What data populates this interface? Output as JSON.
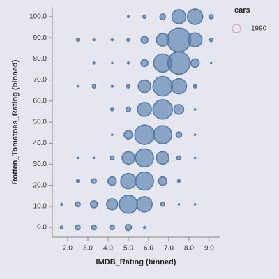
{
  "chart_data": {
    "type": "scatter",
    "x_label": "IMDB_Rating (binned)",
    "y_label": "Rotten_Tomatoes_Rating (binned)",
    "legend_title": "cars",
    "xlim": [
      1.24,
      9.52
    ],
    "ylim": [
      -4.6,
      104.6
    ],
    "xticks": [
      {
        "value": 2,
        "label": "2.0"
      },
      {
        "value": 3,
        "label": "3.0"
      },
      {
        "value": 4,
        "label": "4.0"
      },
      {
        "value": 5,
        "label": "5.0"
      },
      {
        "value": 6,
        "label": "6.0"
      },
      {
        "value": 7,
        "label": "7.0"
      },
      {
        "value": 8,
        "label": "8.0"
      },
      {
        "value": 9,
        "label": "9.0"
      }
    ],
    "yticks": [
      {
        "value": 0,
        "label": "0.0"
      },
      {
        "value": 10,
        "label": "10.0"
      },
      {
        "value": 20,
        "label": "20.0"
      },
      {
        "value": 30,
        "label": "30.0"
      },
      {
        "value": 40,
        "label": "40.0"
      },
      {
        "value": 50,
        "label": "50.0"
      },
      {
        "value": 60,
        "label": "60.0"
      },
      {
        "value": 70,
        "label": "70.0"
      },
      {
        "value": 80,
        "label": "80.0"
      },
      {
        "value": 90,
        "label": "90.0"
      },
      {
        "value": 100,
        "label": "100.0"
      }
    ],
    "series": [
      {
        "name": "1990",
        "color": "#4c78a8",
        "legend_color": "#d98ad4",
        "x": [
          5.0,
          5.8,
          6.7,
          7.5,
          8.3,
          9.1,
          2.5,
          3.3,
          4.2,
          5.0,
          5.8,
          6.7,
          7.5,
          8.3,
          9.1,
          3.3,
          4.2,
          5.0,
          5.8,
          6.7,
          7.5,
          8.3,
          9.1,
          2.5,
          3.3,
          4.2,
          5.0,
          5.8,
          6.7,
          7.5,
          8.3,
          4.2,
          5.0,
          5.8,
          6.7,
          7.5,
          8.3,
          4.2,
          5.0,
          5.8,
          6.7,
          7.5,
          8.3,
          2.5,
          3.3,
          4.2,
          5.0,
          5.8,
          6.7,
          7.5,
          8.3,
          2.5,
          3.3,
          4.2,
          5.0,
          5.8,
          6.7,
          7.5,
          1.7,
          2.5,
          3.3,
          4.2,
          5.0,
          5.8,
          6.7,
          7.5,
          8.3,
          1.7,
          2.5,
          3.3,
          4.2,
          5.0,
          5.8
        ],
        "y": [
          100,
          100,
          100,
          100,
          100,
          100,
          89,
          89,
          89,
          89,
          89,
          89,
          89,
          89,
          89,
          78,
          78,
          78,
          78,
          78,
          78,
          78,
          78,
          67,
          67,
          67,
          67,
          67,
          67,
          67,
          67,
          56,
          56,
          56,
          56,
          56,
          56,
          44,
          44,
          44,
          44,
          44,
          44,
          33,
          33,
          33,
          33,
          33,
          33,
          33,
          33,
          22,
          22,
          22,
          22,
          22,
          22,
          22,
          11,
          11,
          11,
          11,
          11,
          11,
          11,
          11,
          11,
          0,
          0,
          0,
          0,
          0,
          0
        ],
        "sizes": [
          2,
          6,
          16,
          100,
          121,
          9,
          4,
          2,
          2,
          4,
          25,
          81,
          289,
          100,
          6,
          2,
          1,
          2,
          25,
          169,
          256,
          36,
          1,
          1,
          6,
          2,
          6,
          81,
          196,
          121,
          6,
          4,
          12,
          100,
          196,
          49,
          1,
          1,
          36,
          196,
          169,
          16,
          1,
          1,
          1,
          9,
          81,
          169,
          81,
          9,
          1,
          4,
          12,
          36,
          121,
          169,
          36,
          4,
          2,
          12,
          25,
          64,
          169,
          121,
          9,
          1,
          1,
          4,
          12,
          12,
          12,
          20,
          2
        ]
      }
    ]
  }
}
